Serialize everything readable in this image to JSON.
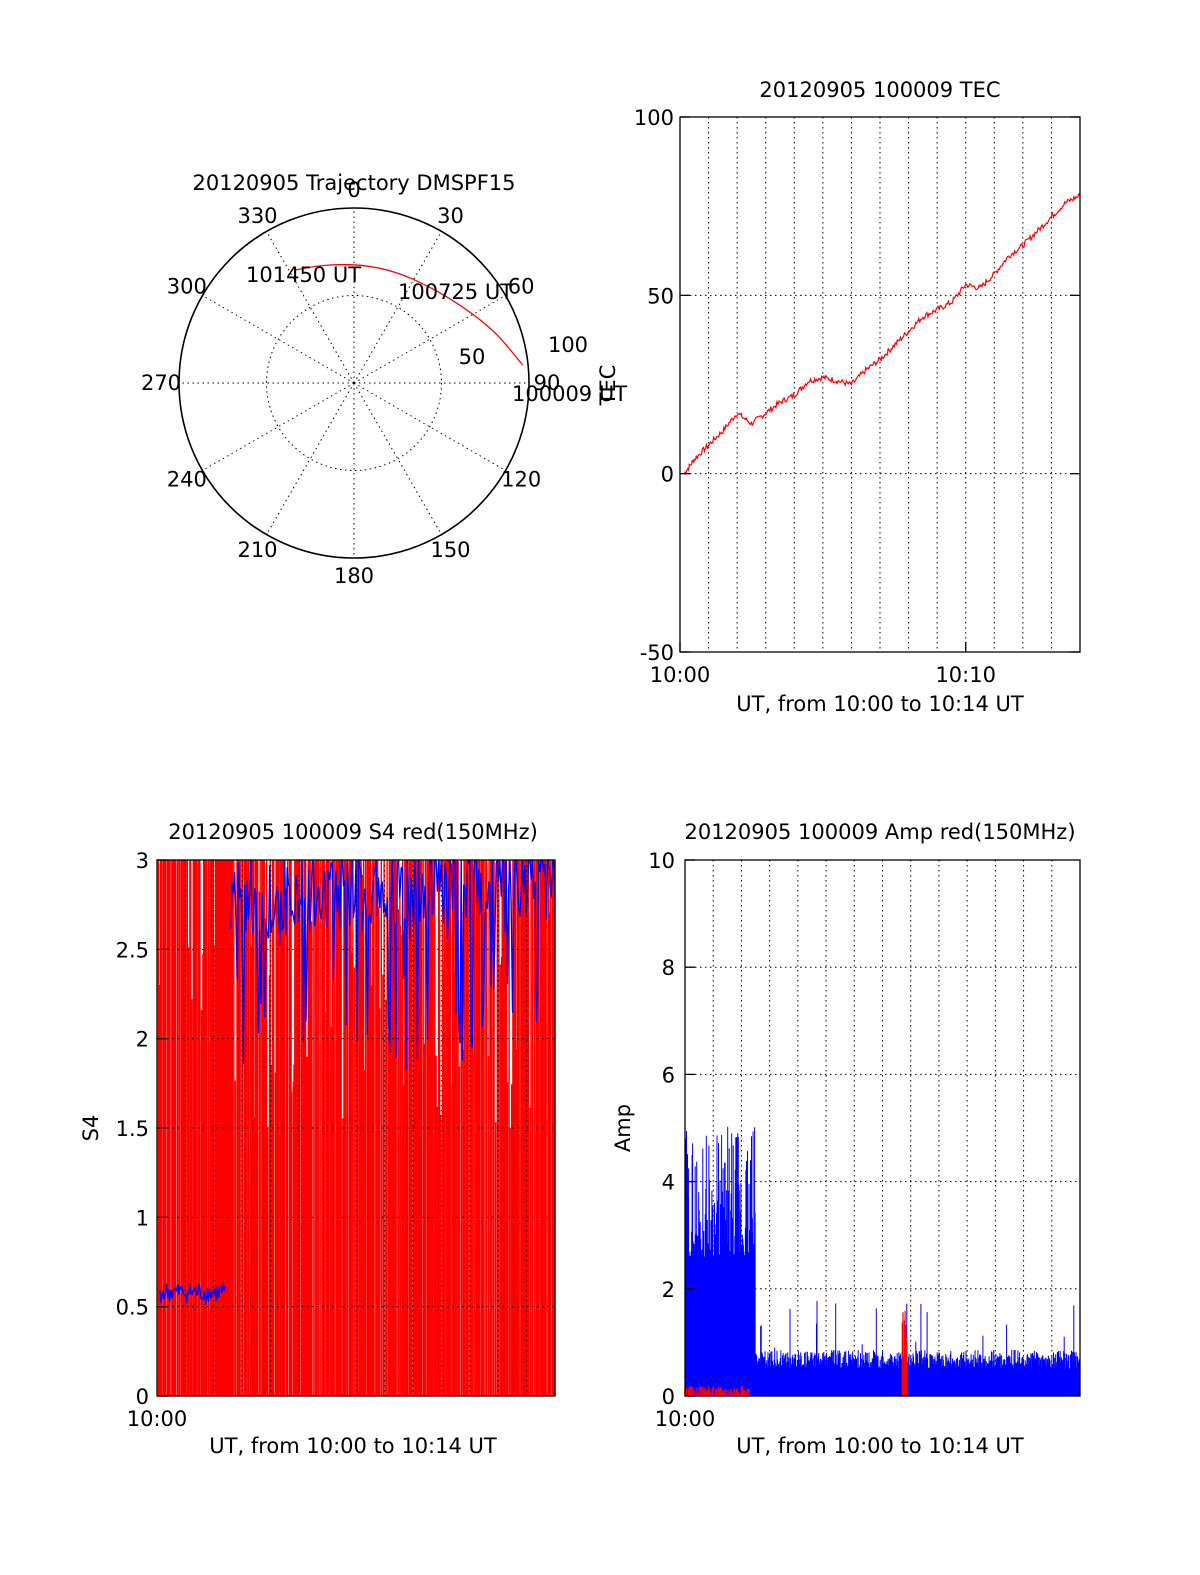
{
  "colors": {
    "red": "#ff0000",
    "blue": "#0000ff",
    "black": "#000000",
    "background": "#ffffff"
  },
  "chart_data": [
    {
      "type": "polar",
      "title": "20120905 Trajectory DMSPF15",
      "angle_labels": [
        "0",
        "30",
        "60",
        "90",
        "120",
        "150",
        "180",
        "210",
        "240",
        "270",
        "300",
        "330"
      ],
      "radial_rings": [
        50,
        100
      ],
      "radial_labels": [
        "50",
        "100"
      ],
      "radius_max": 100,
      "series": [
        {
          "color": "#ff0000",
          "points": [
            {
              "azimuth": 84,
              "elev_offset": 97
            },
            {
              "azimuth": 70,
              "elev_offset": 86
            },
            {
              "azimuth": 55,
              "elev_offset": 76
            },
            {
              "azimuth": 38,
              "elev_offset": 70
            },
            {
              "azimuth": 20,
              "elev_offset": 68
            },
            {
              "azimuth": 2,
              "elev_offset": 68
            },
            {
              "azimuth": -16,
              "elev_offset": 70
            },
            {
              "azimuth": -28,
              "elev_offset": 73
            }
          ]
        }
      ],
      "annotations": [
        {
          "text": "100009 UT",
          "azimuth": 82,
          "r": 110
        },
        {
          "text": "100725 UT",
          "azimuth": 43,
          "r": 95
        },
        {
          "text": "101450 UT",
          "azimuth": -21,
          "r": 76
        }
      ]
    },
    {
      "type": "line",
      "title": "20120905 100009 TEC",
      "xlabel": "UT, from 10:00 to 10:14 UT",
      "ylabel": "TEC",
      "xlim": [
        0,
        14
      ],
      "ylim": [
        -50,
        100
      ],
      "x_tick_labels": [
        {
          "x": 0,
          "label": "10:00"
        },
        {
          "x": 10,
          "label": "10:10"
        }
      ],
      "y_ticks": [
        -50,
        0,
        50,
        100
      ],
      "x_gridlines": [
        1,
        2,
        3,
        4,
        5,
        6,
        7,
        8,
        9,
        10,
        11,
        12,
        13
      ],
      "series": [
        {
          "color": "#ff0000",
          "x": [
            0.15,
            0.5,
            1.0,
            1.5,
            2.0,
            2.5,
            3.0,
            3.5,
            4.0,
            4.5,
            5.0,
            5.5,
            6.0,
            6.5,
            7.0,
            7.5,
            8.0,
            8.5,
            9.0,
            9.5,
            10.0,
            10.5,
            11.0,
            11.5,
            12.0,
            12.5,
            13.0,
            13.5,
            14.0
          ],
          "y": [
            0,
            4,
            8,
            12,
            17,
            14,
            17,
            20,
            22,
            26,
            27,
            26,
            25,
            29,
            32,
            36,
            40,
            44,
            46,
            48,
            53,
            52,
            56,
            61,
            64,
            68,
            72,
            76,
            78
          ]
        }
      ]
    },
    {
      "type": "bar",
      "title": "20120905 100009 S4 red(150MHz)",
      "xlabel": "UT, from 10:00 to 10:14 UT",
      "ylabel": "S4",
      "xlim": [
        0,
        14
      ],
      "ylim": [
        0,
        3
      ],
      "x_tick_labels": [
        {
          "x": 0,
          "label": "10:00"
        }
      ],
      "y_ticks": [
        "0",
        "0.5",
        "1",
        "1.5",
        "2",
        "2.5",
        "3"
      ],
      "series": [
        {
          "name": "red",
          "color": "#ff0000",
          "description_values": "dense vertical spikes from 0 to 3 across the full range"
        },
        {
          "name": "blue",
          "color": "#0000ff",
          "segments": [
            {
              "x": [
                0.1,
                0.5,
                1.0,
                1.5,
                2.0,
                2.4
              ],
              "y": [
                0.58,
                0.56,
                0.6,
                0.62,
                0.58,
                0.6
              ]
            },
            {
              "x": [
                2.6,
                4,
                6,
                8,
                10,
                12,
                14
              ],
              "y": [
                2.4,
                2.5,
                2.6,
                2.65,
                2.7,
                2.75,
                2.8
              ]
            }
          ]
        }
      ]
    },
    {
      "type": "bar",
      "title": "20120905 100009 Amp red(150MHz)",
      "xlabel": "UT, from 10:00 to 10:14 UT",
      "ylabel": "Amp",
      "xlim": [
        0,
        14
      ],
      "ylim": [
        0,
        10
      ],
      "x_tick_labels": [
        {
          "x": 0,
          "label": "10:00"
        }
      ],
      "y_ticks": [
        0,
        2,
        4,
        6,
        8,
        10
      ],
      "x_gridlines": [
        1,
        2,
        3,
        4,
        5,
        6,
        7,
        8,
        9,
        10,
        11,
        12,
        13
      ],
      "series": [
        {
          "name": "blue",
          "color": "#0000ff",
          "segments": [
            {
              "x_range": [
                0,
                2.5
              ],
              "baseline": 2.6,
              "peak": 5.1
            },
            {
              "x_range": [
                2.5,
                14
              ],
              "baseline": 0.65,
              "peak": 1.8
            }
          ]
        },
        {
          "name": "red",
          "color": "#ff0000",
          "segments": [
            {
              "x_range": [
                0,
                2.3
              ],
              "baseline": 0.05,
              "peak": 0.2
            },
            {
              "x_range": [
                7.7,
                7.9
              ],
              "baseline": 0.5,
              "peak": 1.6
            }
          ]
        }
      ]
    }
  ]
}
